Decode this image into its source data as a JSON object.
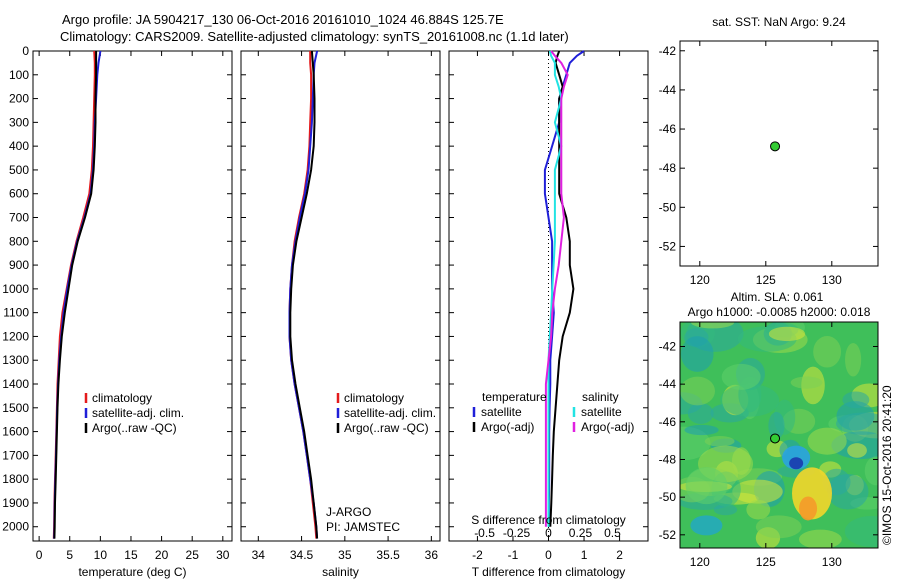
{
  "header": {
    "title_line1": "Argo profile: JA 5904217_130 06-Oct-2016 20161010_1024 46.884S 125.7E",
    "title_line2": "Climatology: CARS2009. Satellite-adjusted climatology: synTS_20161008.nc (1.1d later)"
  },
  "colors": {
    "climatology": "#e41a1c",
    "satellite": "#1f1fd8",
    "argo": "#000000",
    "sal_satellite": "#22e3e3",
    "sal_argo": "#e020e0",
    "marker": "#33cc33"
  },
  "chart_data": [
    {
      "id": "temperature",
      "type": "line",
      "xlabel": "temperature (deg C)",
      "ylabel": "",
      "xlim": [
        -1,
        31.5
      ],
      "ylim": [
        2060,
        0
      ],
      "xticks": [
        0,
        5,
        10,
        15,
        20,
        25,
        30
      ],
      "xtick_labels": [
        "0",
        "5",
        "10",
        "15",
        "20",
        "25",
        "30"
      ],
      "yticks": [
        0,
        100,
        200,
        300,
        400,
        500,
        600,
        700,
        800,
        900,
        1000,
        1100,
        1200,
        1300,
        1400,
        1500,
        1600,
        1700,
        1800,
        1900,
        2000
      ],
      "ytick_labels": [
        "0",
        "100",
        "200",
        "300",
        "400",
        "500",
        "600",
        "700",
        "800",
        "900",
        "1000",
        "1100",
        "1200",
        "1300",
        "1400",
        "1500",
        "1600",
        "1700",
        "1800",
        "1900",
        "2000"
      ],
      "depth": [
        0,
        50,
        100,
        200,
        300,
        400,
        500,
        600,
        700,
        800,
        900,
        1000,
        1100,
        1200,
        1300,
        1400,
        1500,
        1600,
        1700,
        1800,
        1900,
        2000,
        2050
      ],
      "series": [
        {
          "name": "climatology",
          "color_key": "climatology",
          "values": [
            9.0,
            9.1,
            9.1,
            9.0,
            8.9,
            8.8,
            8.6,
            8.2,
            7.2,
            6.1,
            5.2,
            4.5,
            3.8,
            3.4,
            3.2,
            3.0,
            2.9,
            2.8,
            2.7,
            2.6,
            2.5,
            2.45,
            2.4
          ]
        },
        {
          "name": "satellite-adj. clim.",
          "color_key": "satellite",
          "values": [
            10.0,
            9.7,
            9.5,
            9.3,
            9.1,
            9.0,
            8.8,
            8.4,
            7.4,
            6.2,
            5.3,
            4.6,
            4.0,
            3.6,
            3.3,
            3.1,
            2.95,
            2.85,
            2.75,
            2.65,
            2.55,
            2.5,
            2.45
          ]
        },
        {
          "name": "Argo(..raw -QC)",
          "color_key": "argo",
          "values": [
            9.3,
            9.3,
            9.3,
            9.2,
            9.2,
            9.1,
            8.9,
            8.5,
            7.5,
            6.3,
            5.4,
            4.8,
            4.2,
            3.7,
            3.4,
            3.15,
            3.0,
            2.9,
            2.8,
            2.7,
            2.6,
            2.55,
            2.5
          ]
        }
      ],
      "legend": [
        "climatology",
        "satellite-adj. clim.",
        "Argo(..raw -QC)"
      ],
      "legend_position": "lower-right"
    },
    {
      "id": "salinity",
      "type": "line",
      "xlabel": "salinity",
      "ylabel": "",
      "xlim": [
        33.8,
        36.1
      ],
      "ylim": [
        2060,
        0
      ],
      "xticks": [
        34,
        34.5,
        35,
        35.5,
        36
      ],
      "xtick_labels": [
        "34",
        "34.5",
        "35",
        "35.5",
        "36"
      ],
      "depth": [
        0,
        50,
        100,
        200,
        300,
        400,
        500,
        600,
        700,
        800,
        900,
        1000,
        1100,
        1200,
        1300,
        1400,
        1500,
        1600,
        1700,
        1800,
        1900,
        2000,
        2050
      ],
      "series": [
        {
          "name": "climatology",
          "color_key": "climatology",
          "values": [
            34.6,
            34.6,
            34.61,
            34.61,
            34.6,
            34.59,
            34.57,
            34.53,
            34.47,
            34.42,
            34.39,
            34.37,
            34.36,
            34.36,
            34.38,
            34.42,
            34.47,
            34.52,
            34.56,
            34.6,
            34.63,
            34.66,
            34.67
          ]
        },
        {
          "name": "satellite-adj. clim.",
          "color_key": "satellite",
          "values": [
            34.68,
            34.65,
            34.64,
            34.63,
            34.62,
            34.6,
            34.58,
            34.54,
            34.48,
            34.43,
            34.39,
            34.37,
            34.36,
            34.36,
            34.38,
            34.42,
            34.47,
            34.52,
            34.56,
            34.6,
            34.64,
            34.67,
            34.68
          ]
        },
        {
          "name": "Argo(..raw -QC)",
          "color_key": "argo",
          "values": [
            34.62,
            34.63,
            34.64,
            34.65,
            34.65,
            34.64,
            34.61,
            34.56,
            34.5,
            34.44,
            34.4,
            34.38,
            34.37,
            34.37,
            34.39,
            34.43,
            34.48,
            34.53,
            34.57,
            34.61,
            34.64,
            34.67,
            34.68
          ]
        }
      ],
      "legend": [
        "climatology",
        "satellite-adj. clim.",
        "Argo(..raw -QC)"
      ],
      "legend_position": "lower-right",
      "annotation_line1": "J-ARGO",
      "annotation_line2": "PI: JAMSTEC"
    },
    {
      "id": "difference",
      "type": "line",
      "xlabel": "T difference from climatology",
      "top_axis_label": "S difference from climatology",
      "xlim": [
        -2.8,
        2.8
      ],
      "ylim": [
        2060,
        0
      ],
      "xticks": [
        -2,
        -1,
        0,
        1,
        2
      ],
      "xtick_labels": [
        "-2",
        "-1",
        "0",
        "1",
        "2"
      ],
      "s_ticks": [
        -0.5,
        -0.25,
        0,
        0.25,
        0.5
      ],
      "s_tick_labels": [
        "-0.5",
        "-0.25",
        "0",
        "0.25",
        "0.5"
      ],
      "depth": [
        0,
        20,
        50,
        100,
        150,
        200,
        300,
        400,
        500,
        600,
        700,
        800,
        900,
        1000,
        1100,
        1200,
        1300,
        1400,
        1500,
        1600,
        1700,
        1800,
        1900,
        2000
      ],
      "series": [
        {
          "name": "T satellite",
          "color_key": "satellite",
          "values": [
            1.0,
            0.8,
            0.6,
            0.5,
            0.4,
            0.3,
            0.3,
            0.1,
            -0.1,
            -0.1,
            0.0,
            0.1,
            0.1,
            0.1,
            0.15,
            0.1,
            0.05,
            0.05,
            0.03,
            0.02,
            0.02,
            0.02,
            0.01,
            0.01
          ]
        },
        {
          "name": "T Argo(-adj)",
          "color_key": "argo",
          "values": [
            0.3,
            0.25,
            0.2,
            0.3,
            0.4,
            0.3,
            0.3,
            0.3,
            0.3,
            0.3,
            0.5,
            0.6,
            0.6,
            0.7,
            0.6,
            0.4,
            0.3,
            0.25,
            0.2,
            0.15,
            0.12,
            0.1,
            0.08,
            0.05
          ]
        },
        {
          "name": "S satellite",
          "color_key": "sal_satellite",
          "values": [
            0.01,
            0.02,
            0.05,
            0.05,
            0.08,
            0.1,
            0.05,
            0.1,
            0.05,
            0.05,
            0.05,
            0.05,
            0.04,
            0.03,
            0.02,
            0.01,
            0.0,
            0.0,
            0.0,
            0.0,
            0.0,
            0.0,
            0.0,
            0.0
          ]
        },
        {
          "name": "S Argo(-adj)",
          "color_key": "sal_argo",
          "values": [
            0.02,
            0.05,
            0.1,
            0.15,
            0.12,
            0.1,
            0.1,
            0.1,
            0.1,
            0.1,
            0.12,
            0.1,
            0.08,
            0.05,
            0.03,
            0.02,
            0.0,
            -0.02,
            -0.02,
            -0.02,
            -0.02,
            -0.02,
            -0.02,
            -0.02
          ]
        }
      ],
      "legend_temperature_title": "temperature",
      "legend_salinity_title": "salinity",
      "legend_t": [
        "satellite",
        "Argo(-adj)"
      ],
      "legend_s": [
        "satellite",
        "Argo(-adj)"
      ]
    },
    {
      "id": "sst_map",
      "type": "scatter",
      "title": "sat. SST: NaN Argo: 9.24",
      "xlim": [
        118.5,
        133.5
      ],
      "ylim": [
        -53,
        -41.5
      ],
      "xticks": [
        120,
        125,
        130
      ],
      "yticks": [
        -42,
        -44,
        -46,
        -48,
        -50,
        -52
      ],
      "points": [
        {
          "lon": 125.7,
          "lat": -46.884
        }
      ]
    },
    {
      "id": "sla_map",
      "type": "heatmap",
      "title_line1": "Altim. SLA: 0.061",
      "title_line2": "Argo h1000: -0.0085 h2000: 0.018",
      "xlim": [
        118.5,
        133.5
      ],
      "ylim": [
        -52.7,
        -40.7
      ],
      "xticks": [
        120,
        125,
        130
      ],
      "yticks": [
        -42,
        -44,
        -46,
        -48,
        -50,
        -52
      ],
      "points": [
        {
          "lon": 125.7,
          "lat": -46.884
        }
      ],
      "side_text": "©IMOS 15-Oct-2016 20:41:20"
    }
  ]
}
